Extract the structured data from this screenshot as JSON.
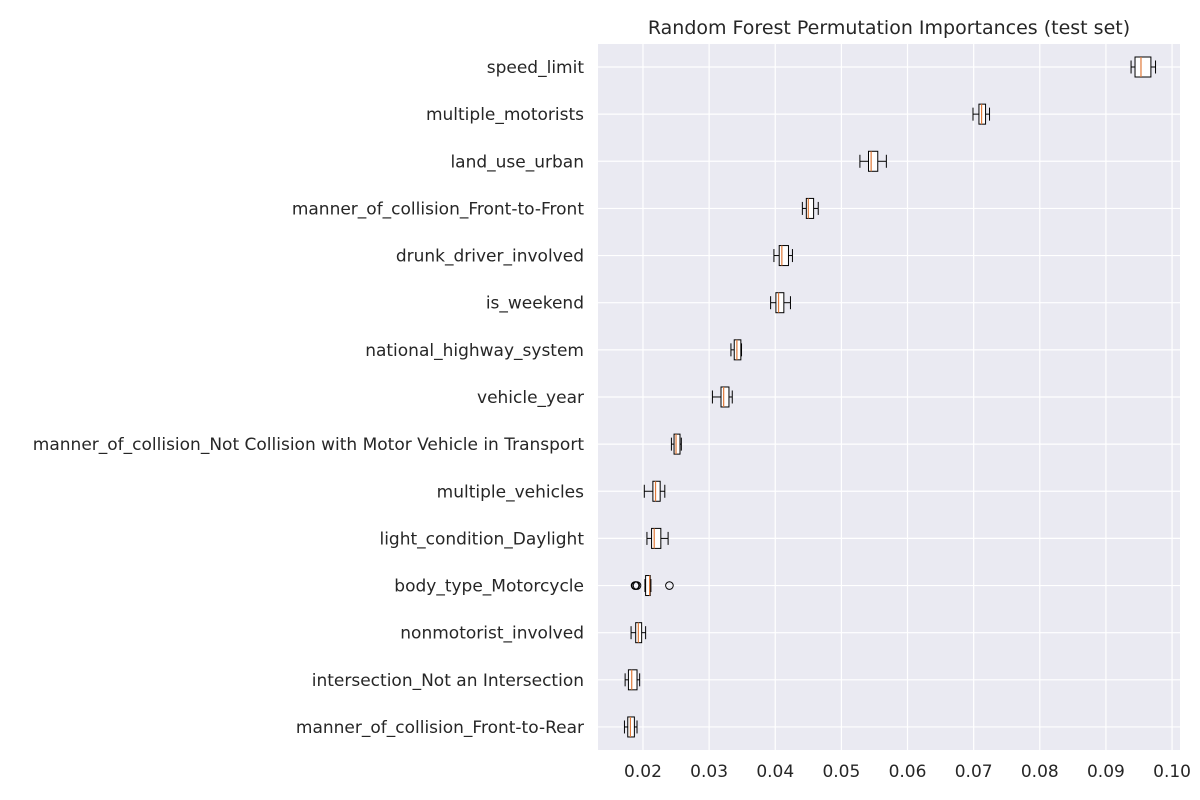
{
  "chart_data": {
    "type": "boxplot",
    "orientation": "horizontal",
    "title": "Random Forest Permutation Importances (test set)",
    "xlabel": "",
    "ylabel": "",
    "xlim": [
      0.0132,
      0.1012
    ],
    "xticks": [
      0.02,
      0.03,
      0.04,
      0.05,
      0.06,
      0.07,
      0.08,
      0.09,
      0.1
    ],
    "xtick_labels": [
      "0.02",
      "0.03",
      "0.04",
      "0.05",
      "0.06",
      "0.07",
      "0.08",
      "0.09",
      "0.10"
    ],
    "grid": true,
    "features": [
      {
        "name": "speed_limit",
        "wlo": 0.0938,
        "q1": 0.0944,
        "median": 0.0953,
        "q3": 0.0968,
        "whi": 0.0975,
        "outliers": []
      },
      {
        "name": "multiple_motorists",
        "wlo": 0.0699,
        "q1": 0.0708,
        "median": 0.0712,
        "q3": 0.0718,
        "whi": 0.0724,
        "outliers": []
      },
      {
        "name": "land_use_urban",
        "wlo": 0.0528,
        "q1": 0.0541,
        "median": 0.0545,
        "q3": 0.0555,
        "whi": 0.0568,
        "outliers": []
      },
      {
        "name": "manner_of_collision_Front-to-Front",
        "wlo": 0.0441,
        "q1": 0.0447,
        "median": 0.045,
        "q3": 0.0458,
        "whi": 0.0465,
        "outliers": []
      },
      {
        "name": "drunk_driver_involved",
        "wlo": 0.0398,
        "q1": 0.0406,
        "median": 0.041,
        "q3": 0.042,
        "whi": 0.0426,
        "outliers": []
      },
      {
        "name": "is_weekend",
        "wlo": 0.0393,
        "q1": 0.0401,
        "median": 0.0405,
        "q3": 0.0413,
        "whi": 0.0423,
        "outliers": []
      },
      {
        "name": "national_highway_system",
        "wlo": 0.0333,
        "q1": 0.0338,
        "median": 0.0342,
        "q3": 0.0348,
        "whi": 0.0349,
        "outliers": []
      },
      {
        "name": "vehicle_year",
        "wlo": 0.0305,
        "q1": 0.0318,
        "median": 0.0322,
        "q3": 0.033,
        "whi": 0.0335,
        "outliers": []
      },
      {
        "name": "manner_of_collision_Not Collision with Motor Vehicle in Transport",
        "wlo": 0.0243,
        "q1": 0.0247,
        "median": 0.025,
        "q3": 0.0256,
        "whi": 0.0258,
        "outliers": []
      },
      {
        "name": "multiple_vehicles",
        "wlo": 0.0202,
        "q1": 0.0215,
        "median": 0.0219,
        "q3": 0.0226,
        "whi": 0.0233,
        "outliers": []
      },
      {
        "name": "light_condition_Daylight",
        "wlo": 0.0206,
        "q1": 0.0213,
        "median": 0.0217,
        "q3": 0.0227,
        "whi": 0.0238,
        "outliers": []
      },
      {
        "name": "body_type_Motorcycle",
        "wlo": 0.0203,
        "q1": 0.0204,
        "median": 0.021,
        "q3": 0.0211,
        "whi": 0.0212,
        "outliers": [
          0.0188,
          0.0189,
          0.0191,
          0.024
        ]
      },
      {
        "name": "nonmotorist_involved",
        "wlo": 0.0182,
        "q1": 0.0189,
        "median": 0.0193,
        "q3": 0.0198,
        "whi": 0.0204,
        "outliers": []
      },
      {
        "name": "intersection_Not an Intersection",
        "wlo": 0.0173,
        "q1": 0.0178,
        "median": 0.0183,
        "q3": 0.0191,
        "whi": 0.0195,
        "outliers": []
      },
      {
        "name": "manner_of_collision_Front-to-Rear",
        "wlo": 0.0172,
        "q1": 0.0177,
        "median": 0.0181,
        "q3": 0.0187,
        "whi": 0.0191,
        "outliers": []
      }
    ],
    "colors": {
      "background": "#eaeaf2",
      "grid": "#ffffff",
      "box_edge": "#000000",
      "box_fill": "#ffffff",
      "median": "#e07a3a",
      "text": "#262626"
    }
  }
}
